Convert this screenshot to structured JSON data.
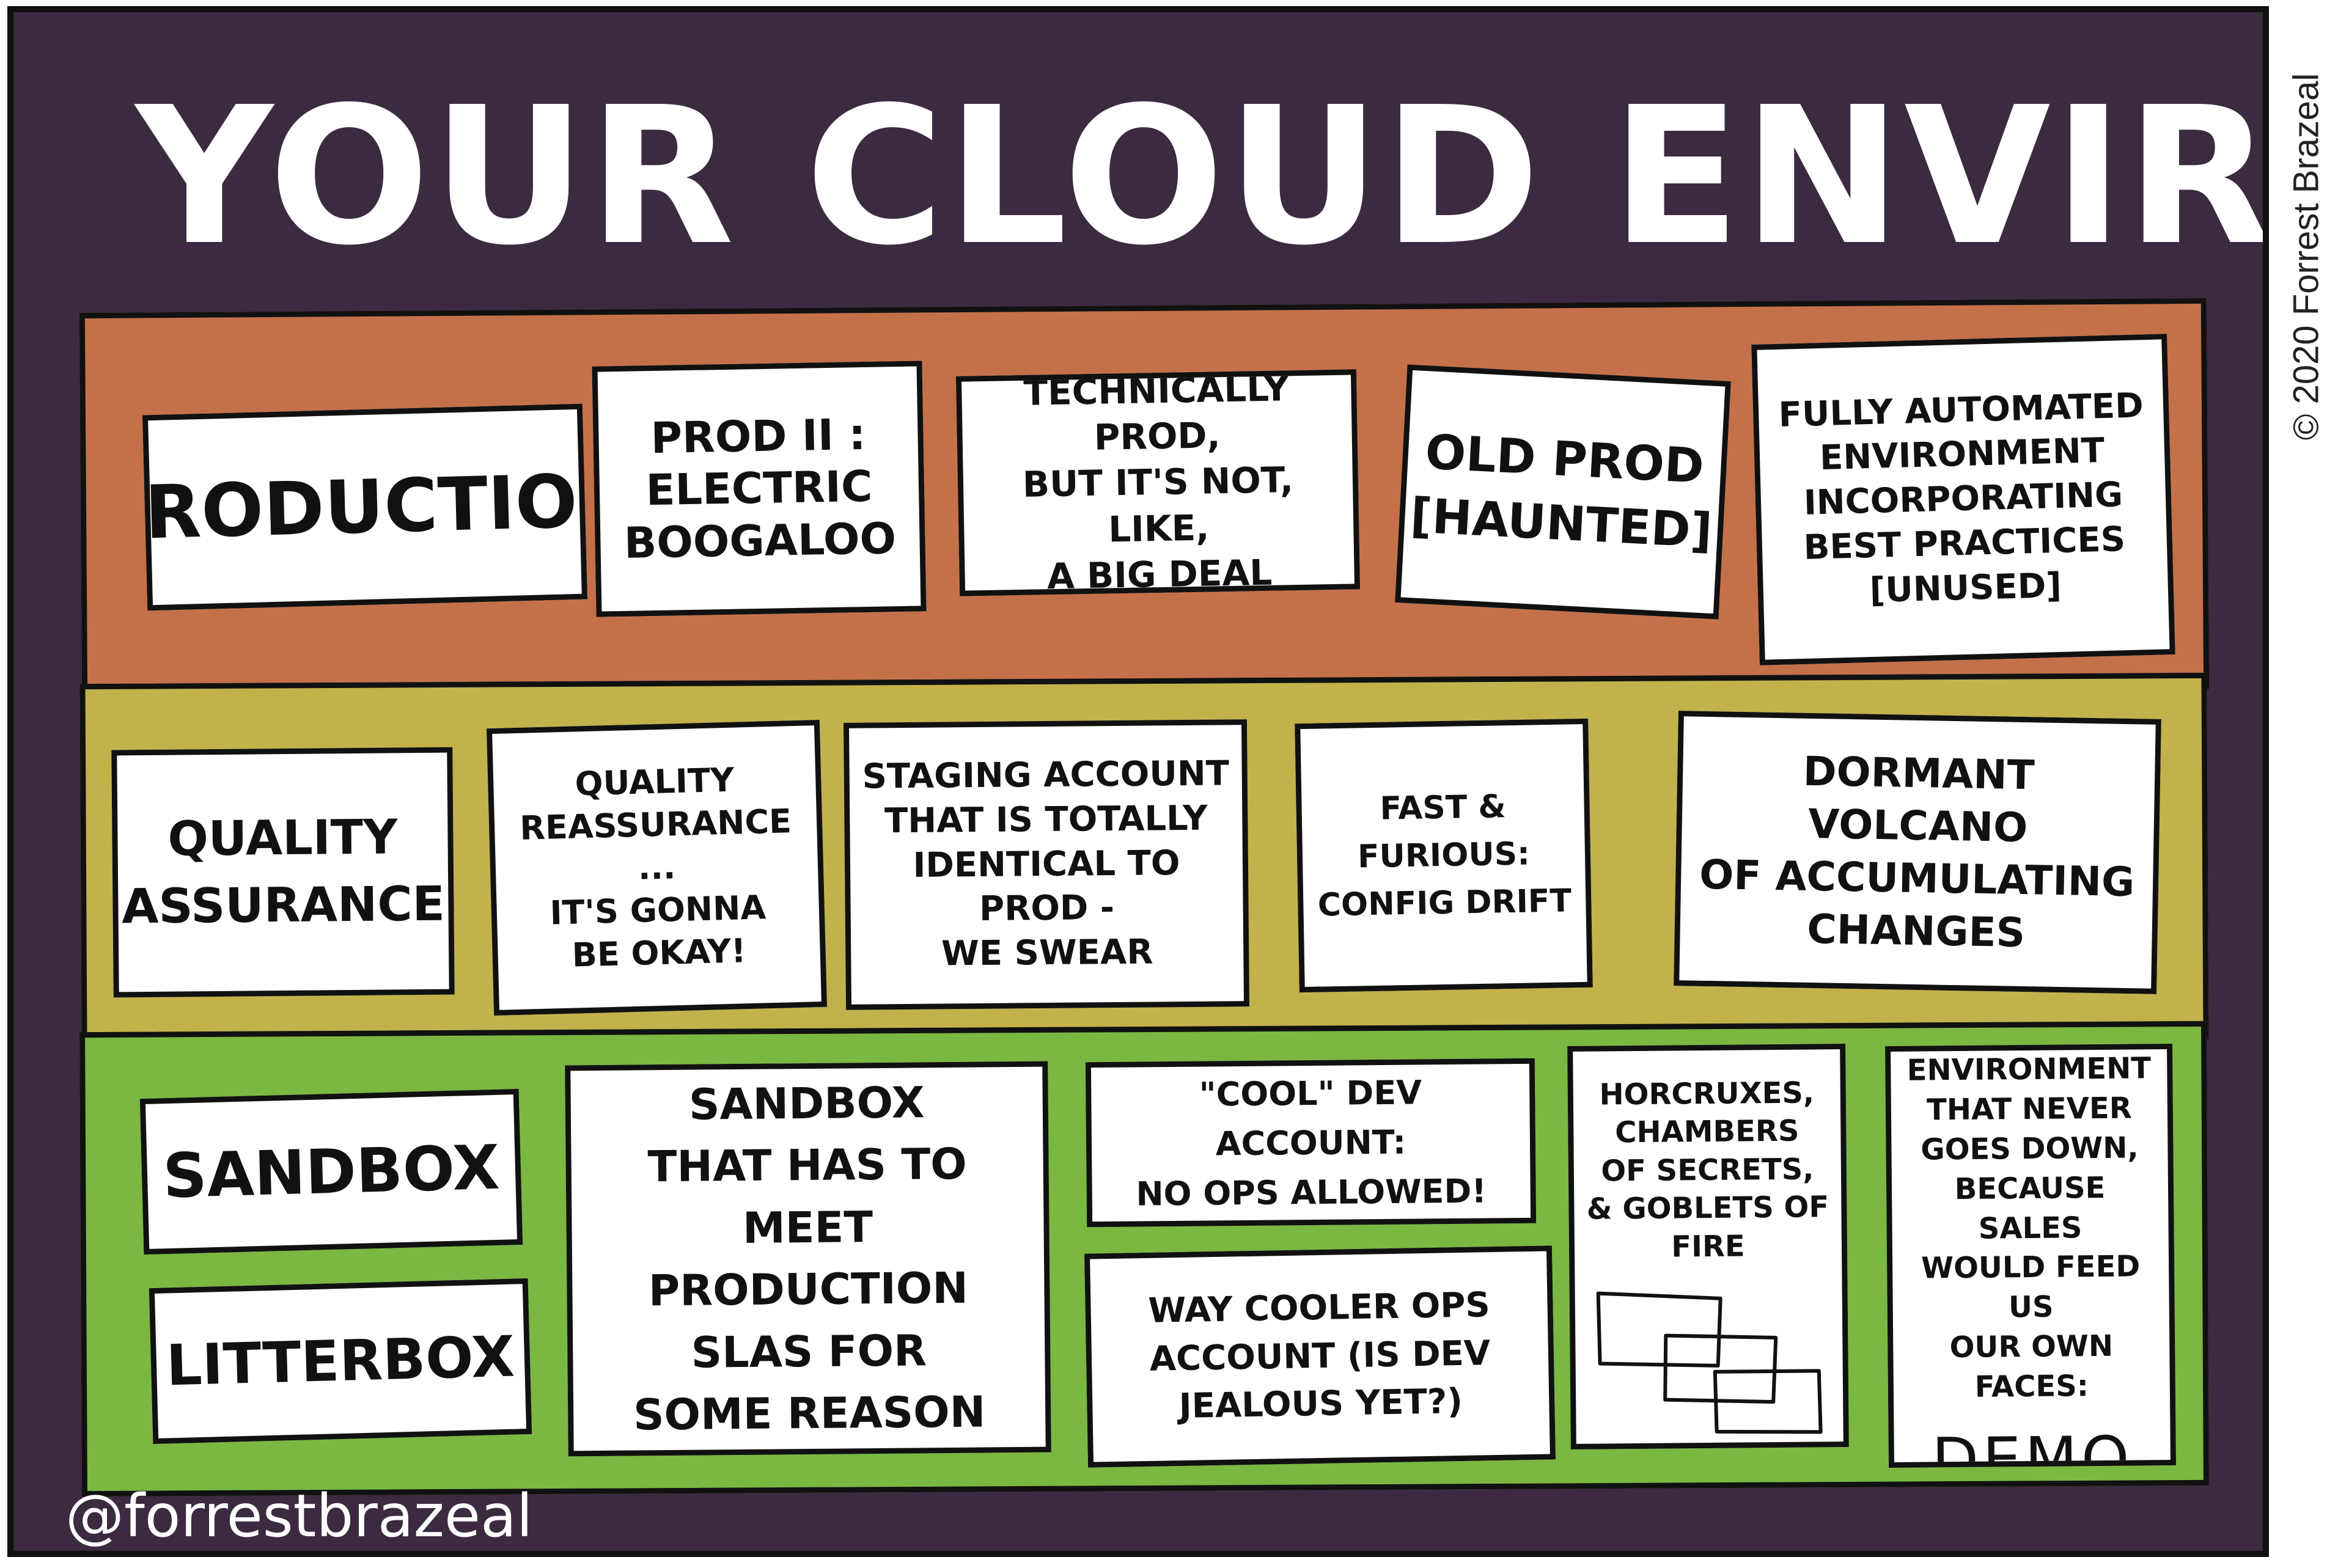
{
  "title": "YOUR CLOUD ENVIRONMENTS",
  "credit": "© 2020 Forrest Brazeal",
  "handle": "@forrestbrazeal",
  "colors": {
    "background": "#3b2a40",
    "production_band": "#c4714a",
    "qa_band": "#c1b24c",
    "dev_band": "#7ab842",
    "card": "#ffffff",
    "ink": "#111111"
  },
  "bands": {
    "production": {
      "cards": [
        "PRODUCTION",
        "PROD II :\nELECTRIC\nBOOGALOO",
        "TECHNICALLY PROD,\nBUT IT'S NOT, LIKE,\nA BIG DEAL",
        "OLD PROD\n[HAUNTED]",
        "FULLY AUTOMATED\nENVIRONMENT\nINCORPORATING\nBEST PRACTICES\n[UNUSED]"
      ]
    },
    "qa": {
      "cards": [
        "QUALITY\nASSURANCE",
        "QUALITY\nREASSURANCE\n...\nIT'S GONNA\nBE OKAY!",
        "STAGING ACCOUNT\nTHAT IS TOTALLY\nIDENTICAL TO\nPROD -\nWE SWEAR",
        "FAST & FURIOUS:\nCONFIG DRIFT",
        "DORMANT\nVOLCANO\nOF ACCUMULATING\nCHANGES"
      ]
    },
    "dev": {
      "cards": [
        "SANDBOX",
        "LITTERBOX",
        "SANDBOX\nTHAT HAS TO MEET\nPRODUCTION\nSLAs FOR\nSOME REASON",
        "\"COOL\" DEV ACCOUNT:\nNO OPS ALLOWED!",
        "WAY COOLER OPS\nACCOUNT (IS DEV\nJEALOUS YET?)",
        "HORCRUXES,\nCHAMBERS\nOF SECRETS,\n& GOBLETS OF\nFIRE",
        "THE ONLY\nENVIRONMENT\nTHAT NEVER\nGOES DOWN,\nBECAUSE SALES\nWOULD FEED US\nOUR OWN FACES:",
        "DEMO"
      ]
    }
  }
}
